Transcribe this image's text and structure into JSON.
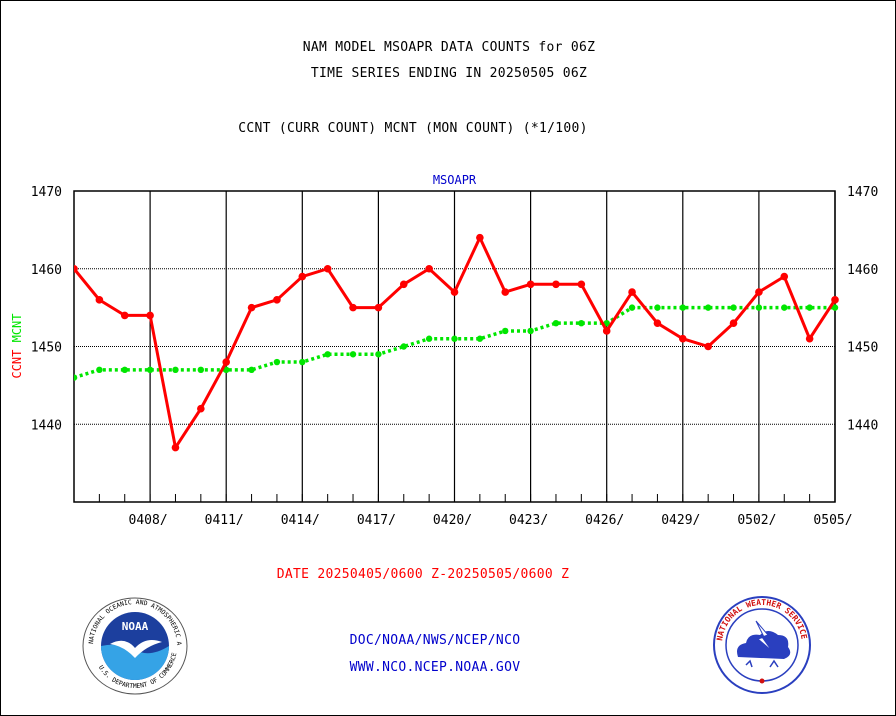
{
  "header": {
    "title_line1": "NAM MODEL MSOAPR DATA COUNTS for 06Z",
    "title_line2": "TIME SERIES ENDING IN 20250505 06Z",
    "subtitle": "CCNT (CURR COUNT) MCNT (MON COUNT) (*1/100)"
  },
  "footer": {
    "date_range": "DATE 20250405/0600 Z-20250505/0600 Z",
    "org_path": "DOC/NOAA/NWS/NCEP/NCO",
    "website": "WWW.NCO.NCEP.NOAA.GOV"
  },
  "logos": {
    "noaa_label": "NOAA",
    "noaa_ring_text": "NATIONAL OCEANIC AND ATMOSPHERIC ADMINISTRATION",
    "noaa_bottom_text": "U.S. DEPARTMENT OF COMMERCE",
    "nws_ring_text": "NATIONAL WEATHER SERVICE"
  },
  "colors": {
    "ccnt": "#ff0000",
    "mcnt": "#00e600",
    "plot_label": "#0000cc",
    "footer_link": "#0000cc",
    "date_text": "#ff0000"
  },
  "chart_data": {
    "type": "line",
    "title": "MSOAPR",
    "ylabel_ccnt": "CCNT",
    "ylabel_mcnt": "MCNT",
    "ylim": [
      1430,
      1470
    ],
    "yticks": [
      1440,
      1450,
      1460,
      1470
    ],
    "xlim": [
      "20250405",
      "20250505"
    ],
    "xticks": [
      "0408/",
      "0411/",
      "0414/",
      "0417/",
      "0420/",
      "0423/",
      "0426/",
      "0429/",
      "0502/",
      "0505/"
    ],
    "grid": true,
    "x": [
      "20250405",
      "20250406",
      "20250407",
      "20250408",
      "20250409",
      "20250410",
      "20250411",
      "20250412",
      "20250413",
      "20250414",
      "20250415",
      "20250416",
      "20250417",
      "20250418",
      "20250419",
      "20250420",
      "20250421",
      "20250422",
      "20250423",
      "20250424",
      "20250425",
      "20250426",
      "20250427",
      "20250428",
      "20250429",
      "20250430",
      "20250501",
      "20250502",
      "20250503",
      "20250504",
      "20250505"
    ],
    "series": [
      {
        "name": "CCNT",
        "color": "#ff0000",
        "values": [
          1460,
          1456,
          1454,
          1454,
          1437,
          1442,
          1448,
          1455,
          1456,
          1459,
          1460,
          1455,
          1455,
          1458,
          1460,
          1457,
          1464,
          1457,
          1458,
          1458,
          1458,
          1452,
          1457,
          1453,
          1451,
          1450,
          1453,
          1457,
          1459,
          1451,
          1456
        ]
      },
      {
        "name": "MCNT",
        "color": "#00e600",
        "values": [
          1446,
          1447,
          1447,
          1447,
          1447,
          1447,
          1447,
          1447,
          1448,
          1448,
          1449,
          1449,
          1449,
          1450,
          1451,
          1451,
          1451,
          1452,
          1452,
          1453,
          1453,
          1453,
          1455,
          1455,
          1455,
          1455,
          1455,
          1455,
          1455,
          1455,
          1455
        ]
      }
    ]
  }
}
